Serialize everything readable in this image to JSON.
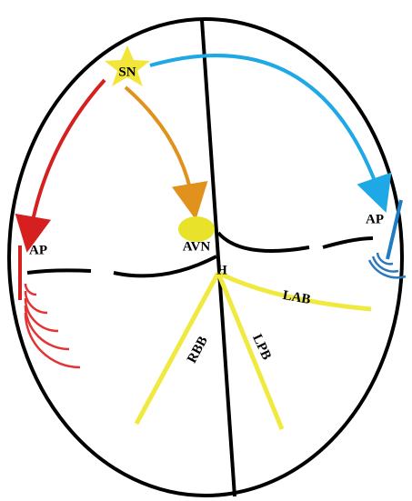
{
  "nodes": [
    {
      "label": "SN"
    },
    {
      "label": "AP"
    },
    {
      "label": "AP"
    },
    {
      "label": "AVN"
    },
    {
      "label": "H"
    },
    {
      "label": "LAB"
    },
    {
      "label": "RBB"
    },
    {
      "label": "LPB"
    }
  ]
}
